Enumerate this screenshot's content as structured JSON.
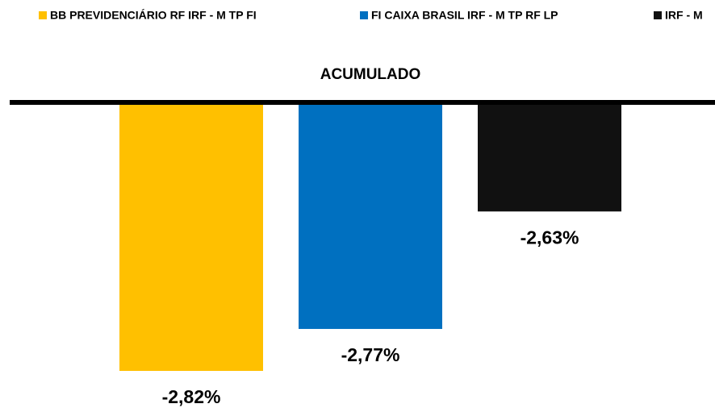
{
  "chart_data": {
    "type": "bar",
    "categories": [
      "ACUMULADO"
    ],
    "series": [
      {
        "name": "BB PREVIDENCIÁRIO RF IRF - M TP FI",
        "color": "#ffc000",
        "values": [
          -2.82
        ],
        "value_labels": [
          "-2,82%"
        ]
      },
      {
        "name": "FI CAIXA BRASIL IRF - M TP RF LP",
        "color": "#0070c0",
        "values": [
          -2.77
        ],
        "value_labels": [
          "-2,77%"
        ]
      },
      {
        "name": "IRF - M",
        "color": "#111111",
        "values": [
          -2.63
        ],
        "value_labels": [
          "-2,63%"
        ]
      }
    ],
    "ylim": [
      -2.86,
      -2.5
    ],
    "legend": "top"
  }
}
